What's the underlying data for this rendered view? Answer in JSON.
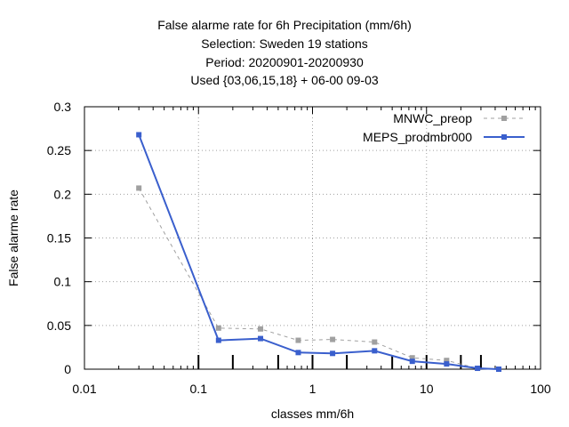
{
  "titles": [
    "False alarme rate  for 6h Precipitation (mm/6h)",
    "Selection: Sweden     19 stations",
    "Period: 20200901-20200930",
    "Used {03,06,15,18} + 06-00 09-03"
  ],
  "chart_data": {
    "type": "line",
    "xscale": "log",
    "xlim": [
      0.01,
      100
    ],
    "ylim": [
      0,
      0.3
    ],
    "xlabel": "classes mm/6h",
    "ylabel": "False alarme rate",
    "grid": true,
    "legend_position": "top-right",
    "x_ticks": [
      0.01,
      0.1,
      1,
      10,
      100
    ],
    "x_tick_labels": [
      "0.01",
      "0.1",
      "1",
      "10",
      "100"
    ],
    "y_ticks": [
      0,
      0.05,
      0.1,
      0.15,
      0.2,
      0.25,
      0.3
    ],
    "y_tick_labels": [
      "0",
      "0.05",
      "0.1",
      "0.15",
      "0.2",
      "0.25",
      "0.3"
    ],
    "class_thresholds": [
      0.1,
      0.2,
      0.5,
      1,
      2,
      5,
      10,
      20,
      30
    ],
    "series": [
      {
        "name": "MNWC_preop",
        "color": "#a0a0a0",
        "style": "dashed",
        "x": [
          0.03,
          0.15,
          0.35,
          0.75,
          1.5,
          3.5,
          7.5,
          15,
          28,
          43
        ],
        "values": [
          0.207,
          0.047,
          0.046,
          0.033,
          0.034,
          0.031,
          0.013,
          0.01,
          0.001,
          0.0
        ]
      },
      {
        "name": "MEPS_prodmbr000",
        "color": "#3a5fcd",
        "style": "solid",
        "x": [
          0.03,
          0.15,
          0.35,
          0.75,
          1.5,
          3.5,
          7.5,
          15,
          28,
          43
        ],
        "values": [
          0.268,
          0.033,
          0.035,
          0.019,
          0.018,
          0.021,
          0.009,
          0.006,
          0.001,
          0.0
        ]
      }
    ]
  }
}
